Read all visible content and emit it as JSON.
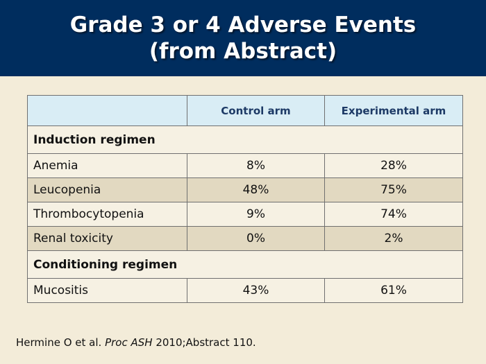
{
  "title": {
    "line1": "Grade 3 or 4 Adverse Events",
    "line2": "(from Abstract)"
  },
  "table": {
    "columns": [
      "",
      "Control arm",
      "Experimental arm"
    ],
    "sections": [
      {
        "name": "Induction regimen",
        "rows": [
          {
            "label": "Anemia",
            "control": "8%",
            "experimental": "28%"
          },
          {
            "label": "Leucopenia",
            "control": "48%",
            "experimental": "75%"
          },
          {
            "label": "Thrombocytopenia",
            "control": "9%",
            "experimental": "74%"
          },
          {
            "label": "Renal toxicity",
            "control": "0%",
            "experimental": "2%"
          }
        ]
      },
      {
        "name": "Conditioning regimen",
        "rows": [
          {
            "label": "Mucositis",
            "control": "43%",
            "experimental": "61%"
          }
        ]
      }
    ]
  },
  "citation": {
    "authors": "Hermine O et al.",
    "journal": "Proc ASH",
    "details": "2010;Abstract 110."
  }
}
